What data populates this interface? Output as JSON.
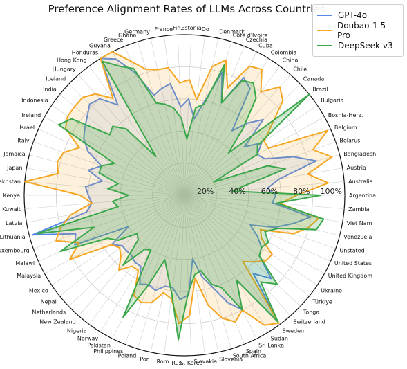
{
  "colors": {
    "gpt": "#5588e8",
    "doubao": "#f5a623",
    "deepseek": "#3aa84a"
  },
  "chart_data": {
    "type": "radar",
    "title": "Preference Alignment Rates of LLMs Across Countries",
    "radial_ticks": [
      "20%",
      "40%",
      "60%",
      "80%",
      "100%"
    ],
    "radial_values": [
      20,
      40,
      60,
      80,
      100
    ],
    "rlim": [
      0,
      100
    ],
    "grid": true,
    "legend_position": "top-right",
    "categories": [
      "Argentina",
      "Australia",
      "Austria",
      "Bangladesh",
      "Belarus",
      "Belgium",
      "Bosnia-Herz.",
      "Bulgaria",
      "Brazil",
      "Canada",
      "Chile",
      "China",
      "Colombia",
      "Cuba",
      "Czechia",
      "Côte d'Ivoire",
      "Denmark",
      "Do",
      "Estonia",
      "Fin.",
      "France",
      "Germany",
      "Ghana",
      "Greece",
      "Guyana",
      "Honduras",
      "Hong Kong",
      "Hungary",
      "Iceland",
      "India",
      "Indonesia",
      "Ireland",
      "Israel",
      "Italy",
      "Jamaica",
      "Japan",
      "Kazakhstan",
      "Kenya",
      "Kuwait",
      "Latvia",
      "Lithuania",
      "Luxembourg",
      "Malawi",
      "Malaysia",
      "Mexico",
      "Nepal",
      "Netherlands",
      "New Zealand",
      "Nigeria",
      "Norway",
      "Pakistan",
      "Philippines",
      "Poland",
      "Por.",
      "Rom.",
      "Rus.",
      "S. Korea",
      "Slovakia",
      "Slovenia",
      "South Africa",
      "Spain",
      "Sri Lanka",
      "Sudan",
      "Sweden",
      "Switzerland",
      "Tonga",
      "Türkiye",
      "Ukraine",
      "United Kingdom",
      "United States",
      "Unstated",
      "Venezuela",
      "Viet Nam",
      "Zambia"
    ],
    "series": [
      {
        "name": "GPT-4o",
        "values": [
          57,
          52,
          60,
          85,
          72,
          55,
          52,
          58,
          48,
          68,
          60,
          50,
          78,
          82,
          62,
          80,
          60,
          48,
          60,
          55,
          70,
          68,
          65,
          82,
          95,
          100,
          70,
          80,
          82,
          78,
          75,
          72,
          66,
          55,
          62,
          52,
          62,
          60,
          58,
          62,
          98,
          72,
          75,
          40,
          55,
          50,
          50,
          50,
          52,
          52,
          62,
          60,
          62,
          58,
          58,
          65,
          62,
          40,
          52,
          60,
          72,
          80,
          62,
          98,
          65,
          75,
          60,
          58,
          52,
          45,
          60,
          70,
          80,
          55
        ]
      },
      {
        "name": "Doubao-1.5-Pro",
        "values": [
          70,
          90,
          78,
          95,
          85,
          98,
          60,
          60,
          70,
          85,
          90,
          80,
          92,
          90,
          72,
          88,
          82,
          60,
          72,
          70,
          80,
          80,
          82,
          90,
          100,
          100,
          75,
          84,
          88,
          88,
          88,
          85,
          72,
          80,
          82,
          80,
          100,
          65,
          58,
          72,
          80,
          85,
          72,
          82,
          55,
          52,
          55,
          62,
          55,
          55,
          70,
          72,
          70,
          62,
          65,
          80,
          75,
          52,
          70,
          80,
          85,
          80,
          95,
          99,
          55,
          60,
          65,
          66,
          55,
          52,
          72,
          80,
          85,
          60
        ]
      },
      {
        "name": "DeepSeek-v3",
        "values": [
          85,
          30,
          40,
          65,
          55,
          20,
          52,
          55,
          100,
          38,
          55,
          75,
          82,
          80,
          62,
          85,
          58,
          55,
          35,
          48,
          55,
          58,
          60,
          85,
          90,
          98,
          30,
          55,
          62,
          60,
          85,
          90,
          48,
          55,
          55,
          42,
          48,
          35,
          45,
          42,
          95,
          60,
          85,
          55,
          50,
          38,
          40,
          58,
          42,
          40,
          85,
          60,
          42,
          50,
          62,
          90,
          60,
          50,
          48,
          58,
          62,
          80,
          62,
          98,
          72,
          80,
          60,
          58,
          60,
          55,
          62,
          85,
          88,
          58
        ]
      }
    ]
  }
}
